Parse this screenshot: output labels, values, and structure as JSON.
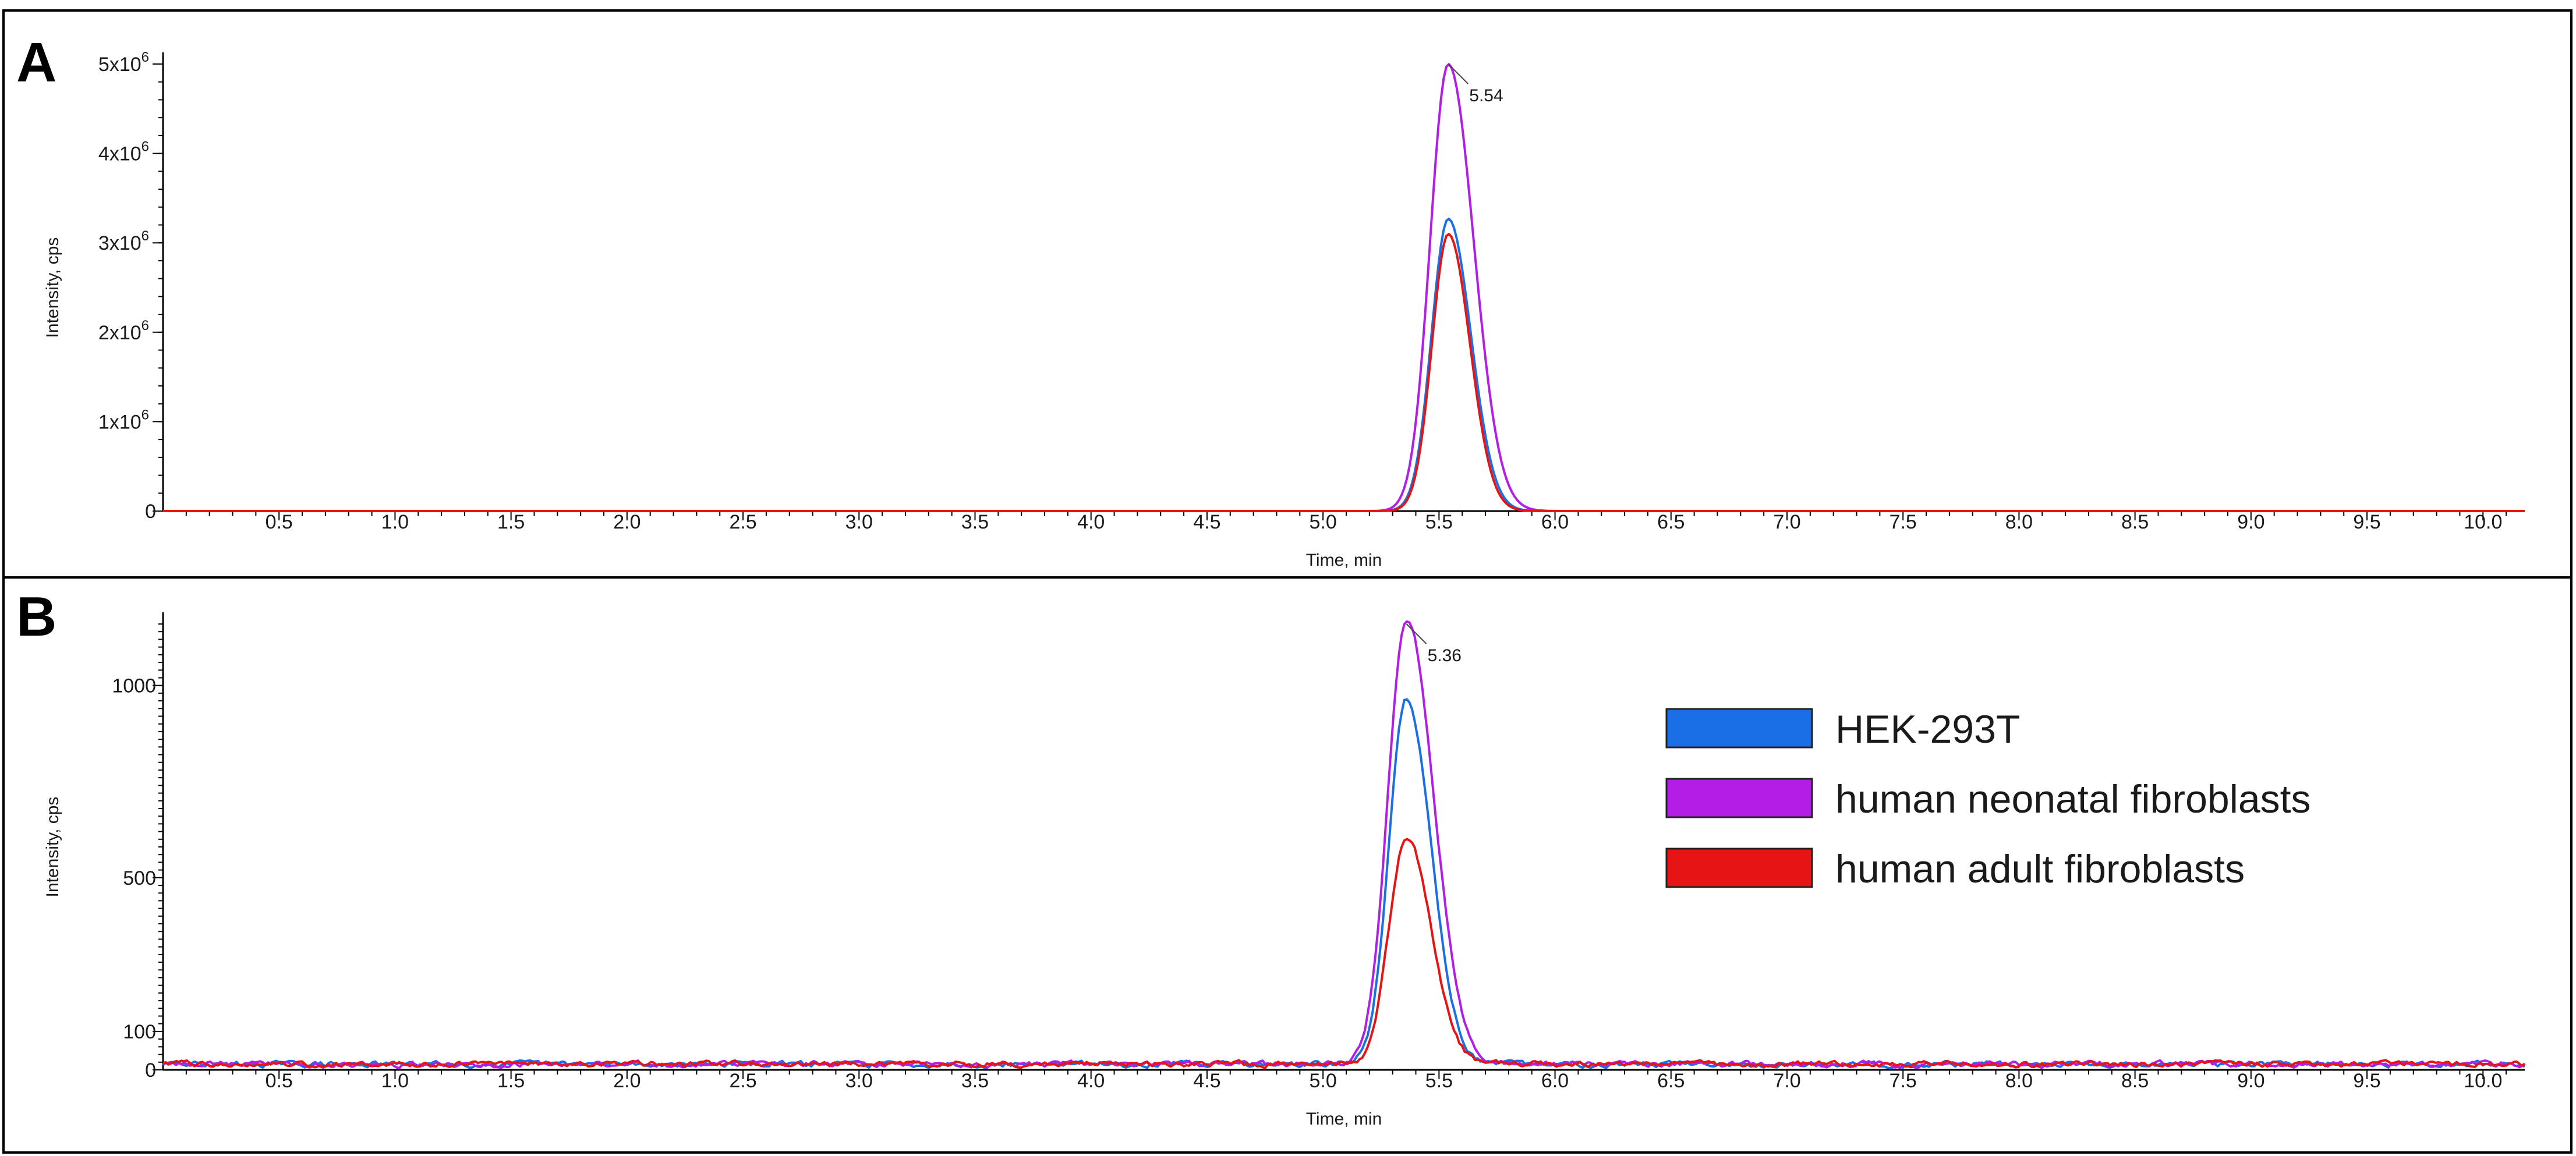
{
  "figure": {
    "panel_labels": [
      "A",
      "B"
    ]
  },
  "colors": {
    "HEK-293T": "#1a6fe6",
    "human neonatal fibroblasts": "#b21ee6",
    "human adult fibroblasts": "#e61414",
    "axis": "#000000"
  },
  "chart_data": [
    {
      "type": "line",
      "panel": "A",
      "xlabel": "Time, min",
      "ylabel": "Intensity, cps",
      "xlim": [
        0,
        10.18
      ],
      "ylim": [
        0,
        5000000
      ],
      "x_ticks": [
        0.5,
        1.0,
        1.5,
        2.0,
        2.5,
        3.0,
        3.5,
        4.0,
        4.5,
        5.0,
        5.5,
        6.0,
        6.5,
        7.0,
        7.5,
        8.0,
        8.5,
        9.0,
        9.5,
        10.0
      ],
      "x_tick_labels": [
        "0.5",
        "1.0",
        "1.5",
        "2.0",
        "2.5",
        "3.0",
        "3.5",
        "4.0",
        "4.5",
        "5.0",
        "5.5",
        "6.0",
        "6.5",
        "7.0",
        "7.5",
        "8.0",
        "8.5",
        "9.0",
        "9.5",
        "10.0"
      ],
      "y_ticks": [
        0,
        1000000,
        2000000,
        3000000,
        4000000,
        5000000
      ],
      "y_tick_labels": [
        {
          "base": "0",
          "exp": ""
        },
        {
          "base": "1x10",
          "exp": "6"
        },
        {
          "base": "2x10",
          "exp": "6"
        },
        {
          "base": "3x10",
          "exp": "6"
        },
        {
          "base": "4x10",
          "exp": "6"
        },
        {
          "base": "5x10",
          "exp": "6"
        }
      ],
      "annotations": [
        {
          "x": 5.54,
          "y": 5000000,
          "text": "5.54"
        }
      ],
      "series": [
        {
          "name": "HEK-293T",
          "peak_rt": 5.54,
          "peak_height": 3270000,
          "sigma": 0.072,
          "tail": 0.35,
          "baseline": 0,
          "noise": 0
        },
        {
          "name": "human neonatal fibroblasts",
          "peak_rt": 5.54,
          "peak_height": 5000000,
          "sigma": 0.078,
          "tail": 0.4,
          "baseline": 0,
          "noise": 0
        },
        {
          "name": "human adult fibroblasts",
          "peak_rt": 5.54,
          "peak_height": 3100000,
          "sigma": 0.07,
          "tail": 0.33,
          "baseline": 0,
          "noise": 0
        }
      ]
    },
    {
      "type": "line",
      "panel": "B",
      "xlabel": "Time, min",
      "ylabel": "Intensity, cps",
      "xlim": [
        0,
        10.18
      ],
      "ylim": [
        0,
        1160
      ],
      "x_ticks": [
        0.5,
        1.0,
        1.5,
        2.0,
        2.5,
        3.0,
        3.5,
        4.0,
        4.5,
        5.0,
        5.5,
        6.0,
        6.5,
        7.0,
        7.5,
        8.0,
        8.5,
        9.0,
        9.5,
        10.0
      ],
      "x_tick_labels": [
        "0.5",
        "1.0",
        "1.5",
        "2.0",
        "2.5",
        "3.0",
        "3.5",
        "4.0",
        "4.5",
        "5.0",
        "5.5",
        "6.0",
        "6.5",
        "7.0",
        "7.5",
        "8.0",
        "8.5",
        "9.0",
        "9.5",
        "10.0"
      ],
      "y_ticks": [
        0,
        100,
        500,
        1000
      ],
      "y_tick_labels": [
        {
          "base": "0",
          "exp": ""
        },
        {
          "base": "100",
          "exp": ""
        },
        {
          "base": "500",
          "exp": ""
        },
        {
          "base": "1000",
          "exp": ""
        }
      ],
      "annotations": [
        {
          "x": 5.36,
          "y": 1160,
          "text": "5.36"
        }
      ],
      "legend": {
        "position": "upper-right",
        "entries": [
          "HEK-293T",
          "human neonatal fibroblasts",
          "human adult fibroblasts"
        ]
      },
      "series": [
        {
          "name": "HEK-293T",
          "peak_rt": 5.36,
          "peak_height": 950,
          "sigma": 0.075,
          "tail": 0.4,
          "baseline": 15,
          "noise": 14
        },
        {
          "name": "human neonatal fibroblasts",
          "peak_rt": 5.36,
          "peak_height": 1160,
          "sigma": 0.08,
          "tail": 0.45,
          "baseline": 15,
          "noise": 14
        },
        {
          "name": "human adult fibroblasts",
          "peak_rt": 5.36,
          "peak_height": 590,
          "sigma": 0.075,
          "tail": 0.4,
          "baseline": 15,
          "noise": 14
        }
      ]
    }
  ]
}
